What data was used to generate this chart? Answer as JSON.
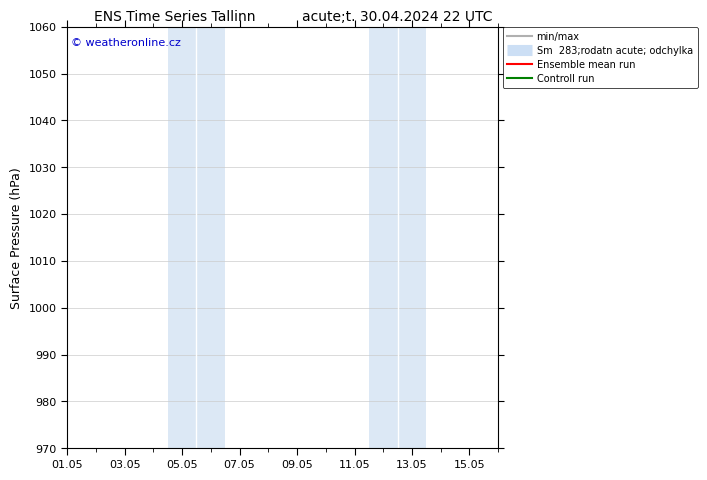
{
  "title_left": "ENS Time Series Tallinn",
  "title_right": "acute;t. 30.04.2024 22 UTC",
  "ylabel": "Surface Pressure (hPa)",
  "ylim": [
    970,
    1060
  ],
  "yticks": [
    970,
    980,
    990,
    1000,
    1010,
    1020,
    1030,
    1040,
    1050,
    1060
  ],
  "xtick_labels": [
    "01.05",
    "03.05",
    "05.05",
    "07.05",
    "09.05",
    "11.05",
    "13.05",
    "15.05"
  ],
  "xtick_positions": [
    0,
    2,
    4,
    6,
    8,
    10,
    12,
    14
  ],
  "total_days": 15,
  "shaded_regions": [
    {
      "start": 3.5,
      "end": 4.0,
      "color": "#ddeeff"
    },
    {
      "start": 4.0,
      "end": 4.5,
      "color": "#cce4f7"
    },
    {
      "start": 4.5,
      "end": 5.5,
      "color": "#ddeeff"
    },
    {
      "start": 10.5,
      "end": 11.0,
      "color": "#ddeeff"
    },
    {
      "start": 11.0,
      "end": 11.5,
      "color": "#cce4f7"
    },
    {
      "start": 11.5,
      "end": 12.5,
      "color": "#ddeeff"
    }
  ],
  "shaded_simple": [
    {
      "start": 3.5,
      "end": 5.5,
      "color": "#dce8f5"
    },
    {
      "start": 10.5,
      "end": 12.5,
      "color": "#dce8f5"
    }
  ],
  "watermark_text": "© weatheronline.cz",
  "watermark_color": "#0000cc",
  "legend_entries": [
    {
      "label": "min/max",
      "color": "#b0b0b0",
      "lw": 1.5
    },
    {
      "label": "Sm  283;rodatn acute; odchylka",
      "color": "#ccdff5",
      "lw": 8
    },
    {
      "label": "Ensemble mean run",
      "color": "red",
      "lw": 1.5
    },
    {
      "label": "Controll run",
      "color": "green",
      "lw": 1.5
    }
  ],
  "background_color": "#ffffff",
  "grid_color": "#cccccc",
  "title_fontsize": 10,
  "axis_label_fontsize": 9,
  "tick_fontsize": 8,
  "legend_fontsize": 7
}
